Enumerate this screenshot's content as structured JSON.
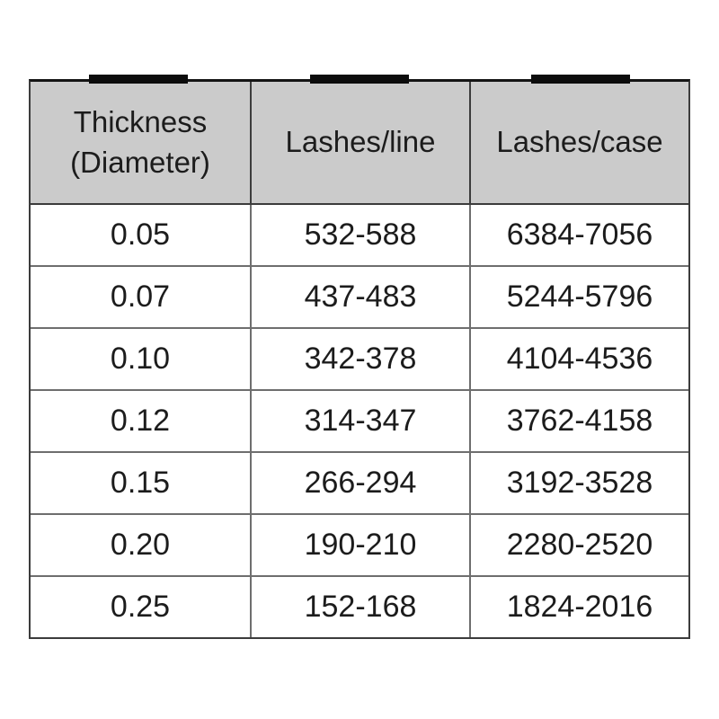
{
  "chart_data": {
    "type": "table",
    "title": "",
    "columns": [
      "Thickness (Diameter)",
      "Lashes/line",
      "Lashes/case"
    ],
    "rows": [
      [
        "0.05",
        "532-588",
        "6384-7056"
      ],
      [
        "0.07",
        "437-483",
        "5244-5796"
      ],
      [
        "0.10",
        "342-378",
        "4104-4536"
      ],
      [
        "0.12",
        "314-347",
        "3762-4158"
      ],
      [
        "0.15",
        "266-294",
        "3192-3528"
      ],
      [
        "0.20",
        "190-210",
        "2280-2520"
      ],
      [
        "0.25",
        "152-168",
        "1824-2016"
      ]
    ]
  },
  "table": {
    "header": {
      "thickness": {
        "line1": "Thickness",
        "line2": "(Diameter)"
      },
      "lashes_line": "Lashes/line",
      "lashes_case": "Lashes/case"
    }
  },
  "colors": {
    "page_bg": "#ffffff",
    "header_bg": "#cbcbcb",
    "border_dark": "#3c3c3c",
    "grid_line": "#6e6e6e",
    "marker_black": "#0c0c0c",
    "text": "#1c1c1c"
  }
}
